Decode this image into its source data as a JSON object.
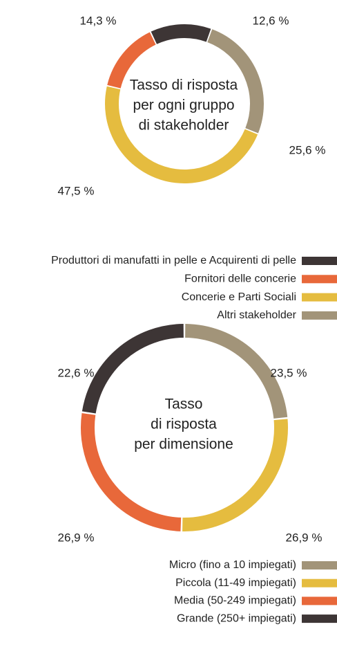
{
  "chart_data": [
    {
      "type": "donut",
      "title": [
        "Tasso di risposta",
        "per ogni gruppo",
        "di stakeholder"
      ],
      "categories": [
        "Produttori di manufatti in pelle e Acquirenti di pelle",
        "Fornitori delle concerie",
        "Concerie e Parti Sociali",
        "Altri stakeholder"
      ],
      "values": [
        12.6,
        14.3,
        47.5,
        25.6
      ],
      "value_labels": [
        "12,6 %",
        "14,3 %",
        "47,5 %",
        "25,6 %"
      ],
      "colors": [
        "#3d3535",
        "#e8683a",
        "#e5bc3f",
        "#a29479"
      ]
    },
    {
      "type": "donut",
      "title": [
        "Tasso",
        "di risposta",
        "per dimensione"
      ],
      "categories": [
        "Micro (fino a 10 impiegati)",
        "Piccola (11-49 impiegati)",
        "Media (50-249 impiegati)",
        "Grande (250+ impiegati)"
      ],
      "values": [
        23.5,
        26.9,
        26.9,
        22.6
      ],
      "value_labels": [
        "23,5 %",
        "26,9 %",
        "26,9 %",
        "22,6 %"
      ],
      "colors": [
        "#a29479",
        "#e5bc3f",
        "#e8683a",
        "#3d3535"
      ]
    }
  ]
}
